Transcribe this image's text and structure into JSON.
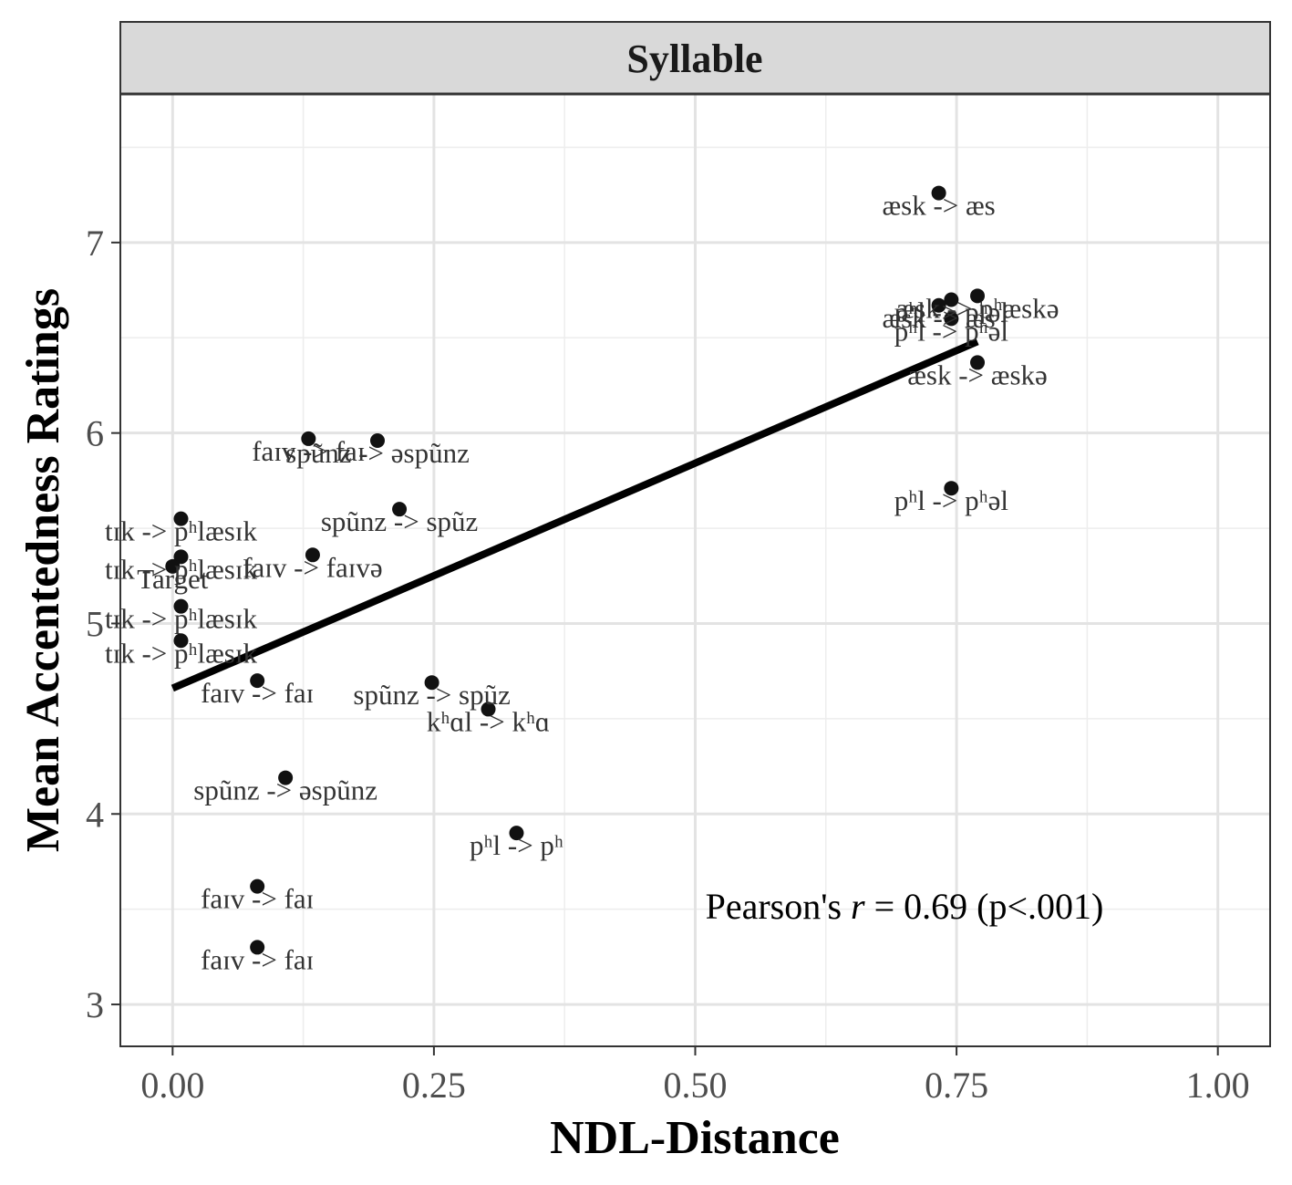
{
  "chart_data": {
    "type": "scatter",
    "panel_title": "Syllable",
    "xlabel": "NDL-Distance",
    "ylabel": "Mean Accentedness Ratings",
    "xlim": [
      -0.05,
      1.05
    ],
    "ylim": [
      2.78,
      7.78
    ],
    "x_ticks": [
      0.0,
      0.25,
      0.5,
      0.75,
      1.0
    ],
    "x_tick_labels": [
      "0.00",
      "0.25",
      "0.50",
      "0.75",
      "1.00"
    ],
    "y_ticks": [
      3,
      4,
      5,
      6,
      7
    ],
    "y_tick_labels": [
      "3",
      "4",
      "5",
      "6",
      "7"
    ],
    "grid": true,
    "annotation": {
      "prefix": "Pearson's ",
      "r_symbol": "r",
      "suffix": " = 0.69 (p<.001)"
    },
    "fit_line": {
      "x": [
        0.0,
        0.77
      ],
      "y": [
        4.66,
        6.48
      ]
    },
    "points": [
      {
        "x": 0.733,
        "y": 7.26,
        "label": "æsk -> æs"
      },
      {
        "x": 0.77,
        "y": 6.72,
        "label": "æsk -> pʰæskə"
      },
      {
        "x": 0.745,
        "y": 6.7,
        "label": "pʰl -> pʰəl"
      },
      {
        "x": 0.733,
        "y": 6.67,
        "label": "æsk -> æs"
      },
      {
        "x": 0.745,
        "y": 6.6,
        "label": "pʰl -> pʰəl"
      },
      {
        "x": 0.77,
        "y": 6.37,
        "label": "æsk -> æskə"
      },
      {
        "x": 0.745,
        "y": 5.71,
        "label": "pʰl -> pʰəl"
      },
      {
        "x": 0.13,
        "y": 5.97,
        "label": "faɪv -> faɪ"
      },
      {
        "x": 0.196,
        "y": 5.96,
        "label": "spũnz -> əspũnz"
      },
      {
        "x": 0.217,
        "y": 5.6,
        "label": "spũnz -> spũz"
      },
      {
        "x": 0.008,
        "y": 5.55,
        "label": "tɪk -> pʰlæsɪk"
      },
      {
        "x": 0.008,
        "y": 5.35,
        "label": "tɪk -> pʰlæsɪk"
      },
      {
        "x": 0.134,
        "y": 5.36,
        "label": "faɪv -> faɪvə"
      },
      {
        "x": 0.0,
        "y": 5.3,
        "label": "Target"
      },
      {
        "x": 0.008,
        "y": 5.09,
        "label": "tɪk -> pʰlæsɪk"
      },
      {
        "x": 0.008,
        "y": 4.91,
        "label": "tɪk -> pʰlæsɪk"
      },
      {
        "x": 0.081,
        "y": 4.7,
        "label": "faɪv -> faɪ"
      },
      {
        "x": 0.248,
        "y": 4.69,
        "label": "spũnz -> spũz"
      },
      {
        "x": 0.302,
        "y": 4.55,
        "label": "kʰɑl -> kʰɑ"
      },
      {
        "x": 0.108,
        "y": 4.19,
        "label": "spũnz -> əspũnz"
      },
      {
        "x": 0.329,
        "y": 3.9,
        "label": "pʰl -> pʰ"
      },
      {
        "x": 0.081,
        "y": 3.62,
        "label": "faɪv -> faɪ"
      },
      {
        "x": 0.081,
        "y": 3.3,
        "label": "faɪv -> faɪ"
      }
    ]
  }
}
